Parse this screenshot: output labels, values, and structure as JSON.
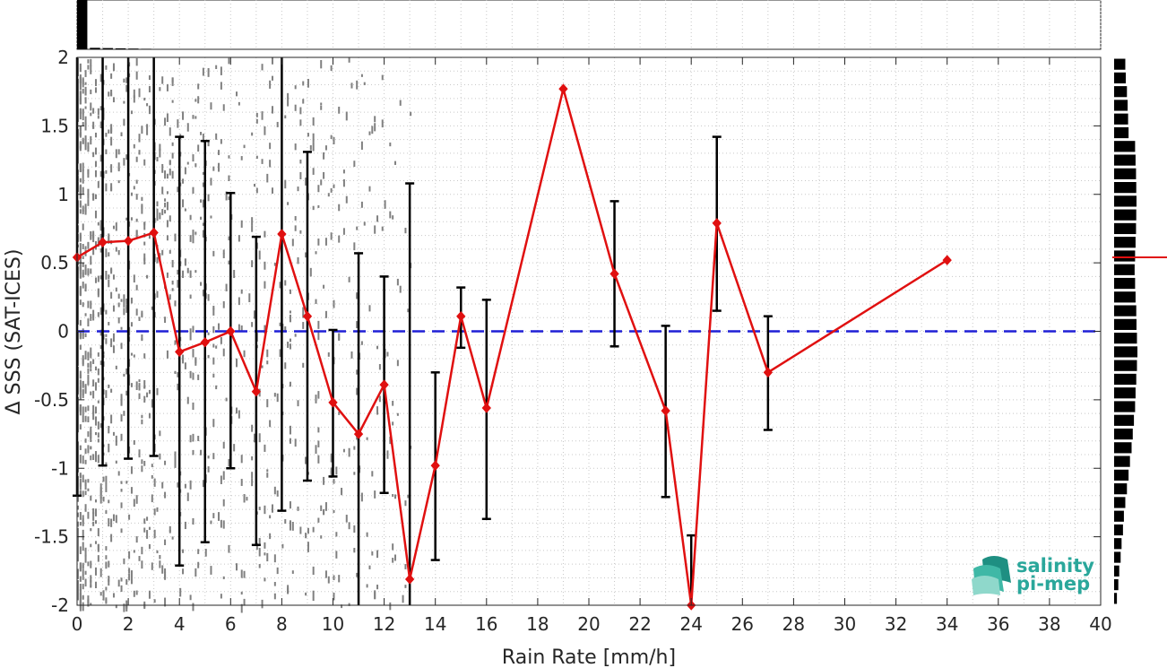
{
  "chart_data": {
    "type": "line",
    "xlabel": "Rain Rate [mm/h]",
    "ylabel": "Δ SSS (SAT-ICES)",
    "xlim": [
      0,
      40
    ],
    "ylim": [
      -2,
      2
    ],
    "xticks": [
      0,
      2,
      4,
      6,
      8,
      10,
      12,
      14,
      16,
      18,
      20,
      22,
      24,
      26,
      28,
      30,
      32,
      34,
      36,
      38,
      40
    ],
    "yticks": [
      -2,
      -1.5,
      -1,
      -0.5,
      0,
      0.5,
      1,
      1.5,
      2
    ],
    "grid": true,
    "reference_line": {
      "y": 0,
      "color": "#1f1fd6",
      "style": "dashed"
    },
    "series": [
      {
        "color": "#e01010",
        "marker": "diamond",
        "x": [
          0,
          1,
          2,
          3,
          4,
          5,
          6,
          7,
          8,
          9,
          10,
          11,
          12,
          13,
          14,
          15,
          16,
          19,
          21,
          23,
          24,
          25,
          27,
          34
        ],
        "y": [
          0.54,
          0.65,
          0.66,
          0.72,
          -0.15,
          -0.08,
          0.0,
          -0.44,
          0.71,
          0.11,
          -0.52,
          -0.75,
          -0.39,
          -1.81,
          -0.98,
          0.11,
          -0.56,
          1.77,
          0.42,
          -0.58,
          -2.0,
          0.79,
          -0.3,
          0.52
        ],
        "err_low": [
          -1.2,
          -0.98,
          -0.93,
          -0.91,
          -1.71,
          -1.54,
          -1.0,
          -1.56,
          -1.31,
          -1.09,
          -1.06,
          -2.0,
          -1.18,
          -2.0,
          -1.67,
          -0.12,
          -1.37,
          null,
          -0.11,
          -1.21,
          -2.0,
          0.15,
          -0.72,
          null
        ],
        "err_high": [
          2.0,
          2.0,
          2.0,
          2.0,
          1.42,
          1.39,
          1.01,
          0.69,
          2.0,
          1.31,
          0.01,
          0.57,
          0.4,
          1.08,
          -0.3,
          0.32,
          0.23,
          null,
          0.95,
          0.04,
          -1.49,
          1.42,
          0.11,
          null
        ]
      }
    ],
    "marginal_histogram_right": {
      "bins": [
        -1.95,
        -1.85,
        -1.75,
        -1.65,
        -1.55,
        -1.45,
        -1.35,
        -1.25,
        -1.15,
        -1.05,
        -0.95,
        -0.85,
        -0.75,
        -0.65,
        -0.55,
        -0.45,
        -0.35,
        -0.25,
        -0.15,
        -0.05,
        0.05,
        0.15,
        0.25,
        0.35,
        0.45,
        0.55,
        0.65,
        0.75,
        0.85,
        0.95,
        1.05,
        1.15,
        1.25,
        1.35,
        1.45,
        1.55,
        1.65,
        1.75,
        1.85,
        1.95
      ],
      "counts": [
        0.12,
        0.18,
        0.22,
        0.28,
        0.32,
        0.38,
        0.42,
        0.48,
        0.55,
        0.62,
        0.68,
        0.75,
        0.8,
        0.85,
        0.9,
        0.92,
        0.95,
        0.98,
        1.0,
        0.98,
        0.96,
        0.95,
        0.92,
        0.9,
        0.88,
        0.9,
        0.92,
        0.94,
        0.95,
        0.96,
        0.95,
        0.94,
        0.92,
        0.9,
        0.62,
        0.6,
        0.58,
        0.55,
        0.5,
        0.48
      ],
      "mean_marker": 0.54
    },
    "marginal_histogram_top": {
      "bins": [
        0,
        0.5,
        1.0,
        1.5,
        2.0,
        2.5
      ],
      "counts": [
        1.0,
        0.03,
        0.025,
        0.02,
        0.015,
        0.01
      ]
    }
  },
  "logo": {
    "line1": "salinity",
    "line2": "pi-mep"
  }
}
